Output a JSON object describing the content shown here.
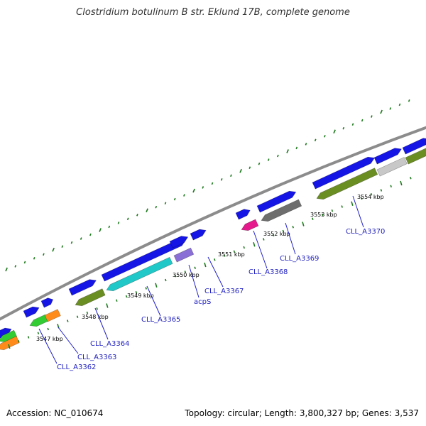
{
  "title": "Clostridium botulinum B str. Eklund 17B, complete genome",
  "footer": {
    "accession": "Accession: NC_010674",
    "summary": "Topology: circular; Length: 3,800,327 bp; Genes: 3,537"
  },
  "colors": {
    "backbone": "#8c8c8c",
    "tick": "#1e7a1e",
    "forward_cds": "#1515e6",
    "lead_line": "#2020c8",
    "label": "#1f1fbf"
  },
  "kbp_labels": [
    "3547 kbp",
    "3548 kbp",
    "3549 kbp",
    "3550 kbp",
    "3551 kbp",
    "3552 kbp",
    "3553 kbp",
    "3554 kbp"
  ],
  "gene_labels": [
    "CLL_A3362",
    "CLL_A3363",
    "CLL_A3364",
    "CLL_A3365",
    "acpS",
    "CLL_A3367",
    "CLL_A3368",
    "CLL_A3369",
    "CLL_A3370"
  ],
  "feature_colors": {
    "cyan": "#20c8c8",
    "olive": "#6b8e23",
    "green": "#33cc33",
    "orange": "#ff8c1a",
    "magenta": "#e6198c",
    "gray": "#6e6e6e",
    "lightgray": "#c8c8c8",
    "purple": "#8a6fd6"
  }
}
